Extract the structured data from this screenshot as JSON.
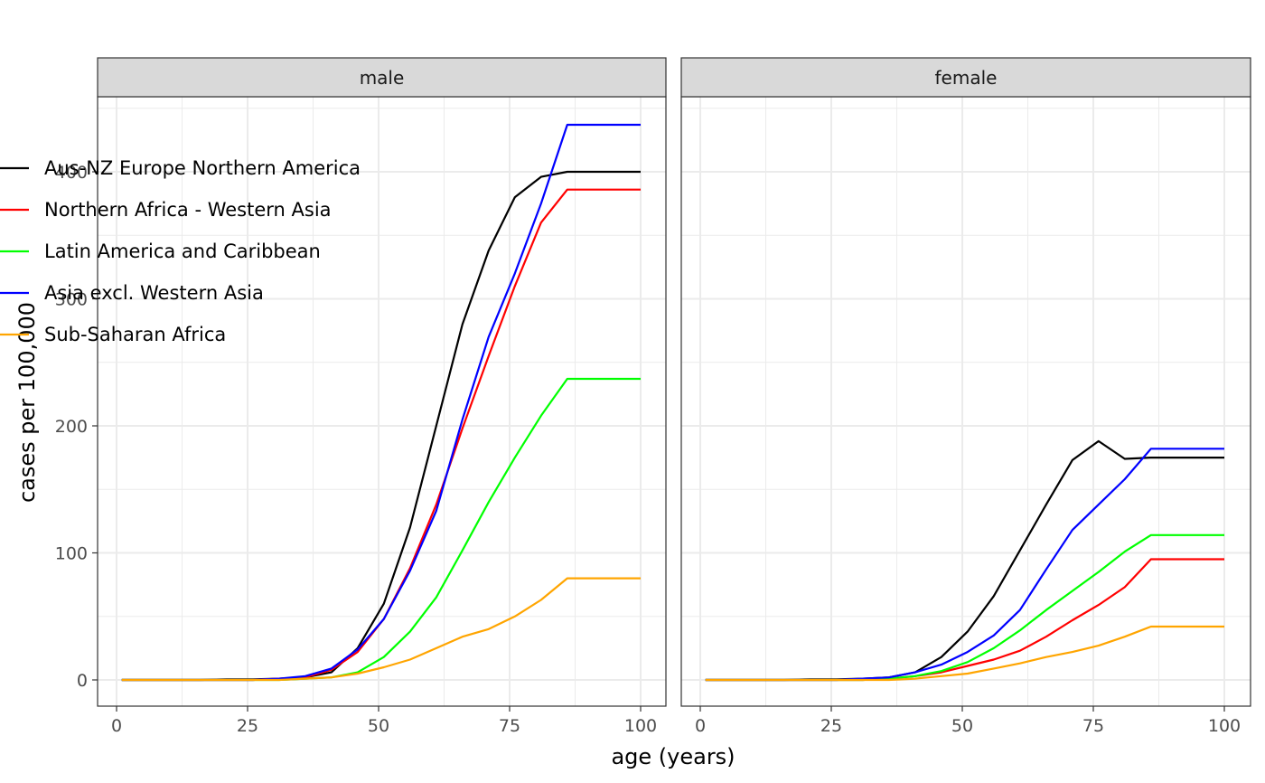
{
  "chart_data": {
    "type": "line",
    "xlabel": "age (years)",
    "ylabel": "cases per 100,000",
    "xlim": [
      0,
      100
    ],
    "ylim": [
      -20,
      460
    ],
    "x_ticks": [
      0,
      25,
      50,
      75,
      100
    ],
    "y_ticks": [
      0,
      100,
      200,
      300,
      400
    ],
    "grid": true,
    "legend_position": "top-left, inside",
    "x": [
      1,
      6,
      11,
      16,
      21,
      26,
      31,
      36,
      41,
      46,
      51,
      56,
      61,
      66,
      71,
      76,
      81,
      86,
      91,
      96,
      100
    ],
    "panels": [
      {
        "label": "male",
        "series": [
          {
            "name": "Aus-NZ Europe Northern America",
            "color": "#000000",
            "values": [
              0,
              0,
              0,
              0,
              0.5,
              0.5,
              1,
              2,
              6,
              25,
              60,
              120,
              200,
              280,
              338,
              380,
              396,
              400,
              400,
              400,
              400
            ]
          },
          {
            "name": "Northern Africa - Western Asia",
            "color": "#ff0000",
            "values": [
              0,
              0,
              0,
              0,
              0,
              0,
              1,
              2,
              8,
              22,
              48,
              88,
              138,
              198,
              255,
              310,
              360,
              386,
              386,
              386,
              386
            ]
          },
          {
            "name": "Latin America and Caribbean",
            "color": "#00ff00",
            "values": [
              0,
              0,
              0,
              0,
              0,
              0,
              0,
              1,
              2,
              6,
              18,
              38,
              65,
              102,
              140,
              175,
              208,
              237,
              237,
              237,
              237
            ]
          },
          {
            "name": "Asia excl. Western Asia",
            "color": "#0000ff",
            "values": [
              0,
              0,
              0,
              0,
              0,
              0,
              1,
              3,
              9,
              24,
              48,
              86,
              133,
              205,
              270,
              320,
              375,
              437,
              437,
              437,
              437
            ]
          },
          {
            "name": "Sub-Saharan Africa",
            "color": "#ffa500",
            "values": [
              0,
              0,
              0,
              0,
              0,
              0,
              0,
              1,
              2,
              5,
              10,
              16,
              25,
              34,
              40,
              50,
              63,
              80,
              80,
              80,
              80
            ]
          }
        ]
      },
      {
        "label": "female",
        "series": [
          {
            "name": "Aus-NZ Europe Northern America",
            "color": "#000000",
            "values": [
              0,
              0,
              0,
              0,
              0.5,
              0.5,
              1,
              2,
              6,
              18,
              38,
              66,
              102,
              138,
              173,
              188,
              174,
              175,
              175,
              175,
              175
            ]
          },
          {
            "name": "Northern Africa - Western Asia",
            "color": "#ff0000",
            "values": [
              0,
              0,
              0,
              0,
              0,
              0,
              0,
              1,
              3,
              6,
              11,
              16,
              23,
              34,
              47,
              59,
              73,
              95,
              95,
              95,
              95
            ]
          },
          {
            "name": "Latin America and Caribbean",
            "color": "#00ff00",
            "values": [
              0,
              0,
              0,
              0,
              0,
              0,
              0,
              1,
              3,
              7,
              14,
              25,
              39,
              55,
              70,
              85,
              101,
              114,
              114,
              114,
              114
            ]
          },
          {
            "name": "Asia excl. Western Asia",
            "color": "#0000ff",
            "values": [
              0,
              0,
              0,
              0,
              0,
              0,
              1,
              2,
              6,
              12,
              22,
              35,
              55,
              87,
              118,
              138,
              158,
              182,
              182,
              182,
              182
            ]
          },
          {
            "name": "Sub-Saharan Africa",
            "color": "#ffa500",
            "values": [
              0,
              0,
              0,
              0,
              0,
              0,
              0,
              0,
              1,
              3,
              5,
              9,
              13,
              18,
              22,
              27,
              34,
              42,
              42,
              42,
              42
            ]
          }
        ]
      }
    ]
  }
}
